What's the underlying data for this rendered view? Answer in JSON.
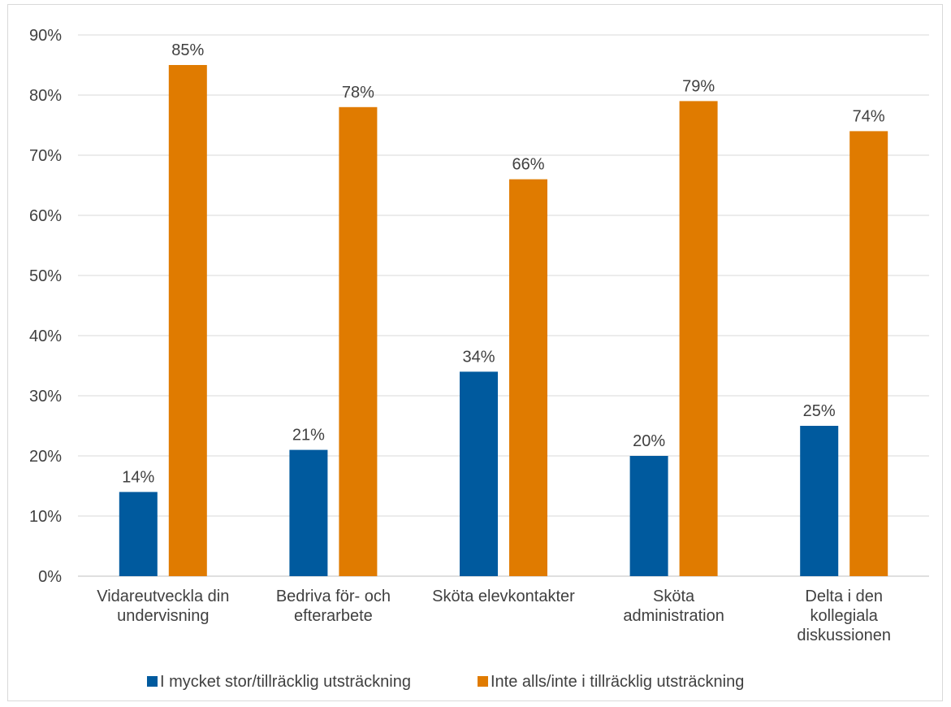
{
  "chart_data": {
    "type": "bar",
    "categories": [
      [
        "Vidareutveckla din",
        "undervisning"
      ],
      [
        "Bedriva för- och",
        "efterarbete"
      ],
      [
        "Sköta elevkontakter"
      ],
      [
        "Sköta",
        "administration"
      ],
      [
        "Delta i den",
        "kollegiala",
        "diskussionen"
      ]
    ],
    "series": [
      {
        "name": "I mycket stor/tillräcklig utsträckning",
        "color": "#005a9e",
        "values": [
          14,
          21,
          34,
          20,
          25
        ],
        "labels": [
          "14%",
          "21%",
          "34%",
          "20%",
          "25%"
        ]
      },
      {
        "name": "Inte alls/inte i tillräcklig utsträckning",
        "color": "#e07b00",
        "values": [
          85,
          78,
          66,
          79,
          74
        ],
        "labels": [
          "85%",
          "78%",
          "66%",
          "79%",
          "74%"
        ]
      }
    ],
    "ylim": [
      0,
      90
    ],
    "yticks": [
      0,
      10,
      20,
      30,
      40,
      50,
      60,
      70,
      80,
      90
    ],
    "ytick_labels": [
      "0%",
      "10%",
      "20%",
      "30%",
      "40%",
      "50%",
      "60%",
      "70%",
      "80%",
      "90%"
    ],
    "grid": true,
    "legend_position": "bottom",
    "title": "",
    "xlabel": "",
    "ylabel": ""
  }
}
